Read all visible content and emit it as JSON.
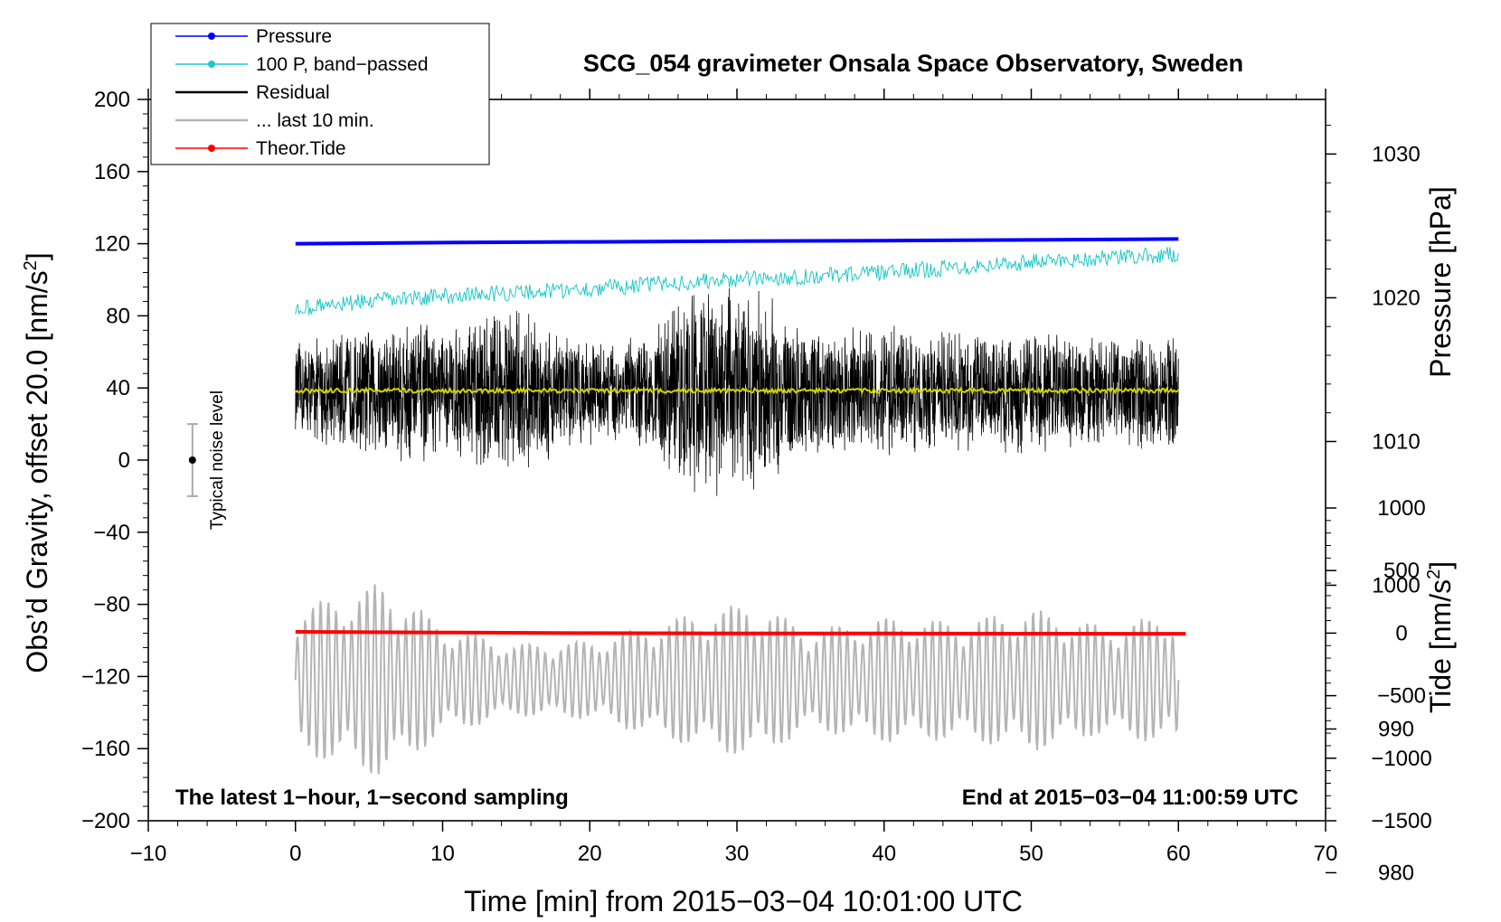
{
  "chart_data": {
    "type": "line",
    "title": "SCG_054 gravimeter Onsala Space Observatory, Sweden",
    "xlabel": "Time [min] from 2015−03−04 10:01:00 UTC",
    "ylabel": "Obs’d Gravity, offset 20.0 [nm/s",
    "ylabel_sup": "2",
    "ylabel_end": "]",
    "y2label": "Pressure [hPa]",
    "y3label": "Tide [nm/s",
    "y3label_sup": "2",
    "y3label_end": "]",
    "xlim": [
      -10,
      70
    ],
    "ylim": [
      -200,
      200
    ],
    "pressure_axis_lim": [
      1005.5,
      1033.8
    ],
    "tide_axis_lim": [
      -1500,
      1000
    ],
    "x_ticks": [
      -10,
      0,
      10,
      20,
      30,
      40,
      50,
      60,
      70
    ],
    "x_tick_labels": [
      "−10",
      "0",
      "10",
      "20",
      "30",
      "40",
      "50",
      "60",
      "70"
    ],
    "y_ticks": [
      -200,
      -160,
      -120,
      -80,
      -40,
      0,
      40,
      80,
      120,
      160,
      200
    ],
    "y_tick_labels": [
      "−200",
      "−160",
      "−120",
      "−80",
      "−40",
      "0",
      "40",
      "80",
      "120",
      "160",
      "200"
    ],
    "pressure_ticks": [
      980,
      990,
      1000,
      1010,
      1020,
      1030
    ],
    "pressure_tick_labels": [
      "980",
      "990",
      "1000",
      "1010",
      "1020",
      "1030"
    ],
    "tide_ticks": [
      -1500,
      -1000,
      -500,
      0,
      500,
      1000
    ],
    "tide_tick_labels": [
      "−1500",
      "−1000",
      "−500",
      "0",
      "500",
      "1000"
    ],
    "legend": [
      {
        "name": "Pressure",
        "color": "#0000ff",
        "marker": true
      },
      {
        "name": "100 P, band−passed",
        "color": "#20c8c8",
        "marker": true
      },
      {
        "name": "Residual",
        "color": "#000000",
        "marker": false
      },
      {
        "name": "... last 10 min.",
        "color": "#b4b4b4",
        "marker": false
      },
      {
        "name": "Theor.Tide",
        "color": "#ff0000",
        "marker": true
      }
    ],
    "series": [
      {
        "name": "Pressure",
        "color": "#0000ff",
        "axis": "gravity",
        "x": [
          0,
          10,
          20,
          30,
          40,
          50,
          60
        ],
        "y": [
          120.0,
          120.6,
          121.0,
          121.4,
          121.7,
          122.1,
          122.6
        ]
      },
      {
        "name": "100 P, band−passed",
        "color": "#20c8c8",
        "axis": "gravity",
        "x": [
          0,
          5,
          10,
          15,
          20,
          25,
          30,
          35,
          40,
          45,
          50,
          55,
          60
        ],
        "y": [
          84,
          88,
          91,
          93,
          95,
          98,
          100,
          102,
          104,
          107,
          110,
          112,
          114
        ]
      },
      {
        "name": "Residual",
        "color": "#000000",
        "axis": "gravity",
        "x": [
          0,
          60
        ],
        "y": [
          38,
          38
        ],
        "envelope_x": [
          0,
          5,
          8,
          10,
          14,
          20,
          24,
          27,
          31.5,
          35,
          40,
          46,
          50,
          55,
          60
        ],
        "envelope_halfwidth": [
          28,
          38,
          45,
          34,
          52,
          30,
          33,
          62,
          60,
          35,
          38,
          33,
          37,
          32,
          35
        ]
      },
      {
        "name": "Residual mean",
        "color": "#d2d200",
        "axis": "gravity",
        "x": [
          0,
          60
        ],
        "y": [
          38.5,
          38.5
        ]
      },
      {
        "name": "... last 10 min.",
        "color": "#b4b4b4",
        "axis": "gravity",
        "x": [
          0,
          60
        ],
        "y": [
          -122,
          -122
        ],
        "envelope_x": [
          0,
          4,
          6,
          10,
          15,
          20,
          26,
          31,
          35,
          40,
          45,
          50,
          55,
          60
        ],
        "envelope_halfwidth": [
          40,
          50,
          55,
          30,
          20,
          22,
          35,
          44,
          28,
          35,
          33,
          40,
          30,
          38
        ]
      },
      {
        "name": "Theor.Tide",
        "color": "#ff0000",
        "axis": "tide",
        "x": [
          0,
          10,
          20,
          30,
          40,
          50,
          60.5
        ],
        "y": [
          10,
          5,
          0,
          -2,
          -3,
          -4,
          -5
        ]
      }
    ],
    "noise_bar": {
      "label": "Typical noise level",
      "x": -7,
      "center": 0,
      "low": -20,
      "high": 20
    },
    "annotation_left": "The latest 1−hour, 1−second sampling",
    "annotation_right": "End at 2015−03−04 11:00:59 UTC"
  }
}
